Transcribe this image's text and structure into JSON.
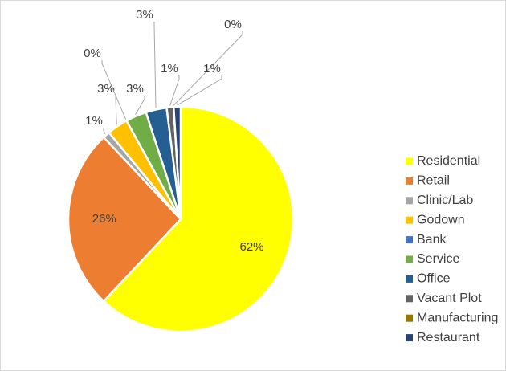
{
  "chart_data": {
    "type": "pie",
    "categories": [
      "Residential",
      "Retail",
      "Clinic/Lab",
      "Godown",
      "Bank",
      "Service",
      "Office",
      "Vacant Plot",
      "Manufacturing",
      "Restaurant"
    ],
    "values": [
      62,
      26,
      1,
      3,
      0,
      3,
      3,
      1,
      0,
      1
    ],
    "value_labels": [
      "62%",
      "26%",
      "1%",
      "3%",
      "0%",
      "3%",
      "3%",
      "1%",
      "0%",
      "1%"
    ],
    "colors": [
      "#FFFF00",
      "#ED7D31",
      "#A5A5A5",
      "#FFC000",
      "#4472C4",
      "#70AD47",
      "#255E91",
      "#636363",
      "#997300",
      "#264478"
    ],
    "legend": "right"
  }
}
